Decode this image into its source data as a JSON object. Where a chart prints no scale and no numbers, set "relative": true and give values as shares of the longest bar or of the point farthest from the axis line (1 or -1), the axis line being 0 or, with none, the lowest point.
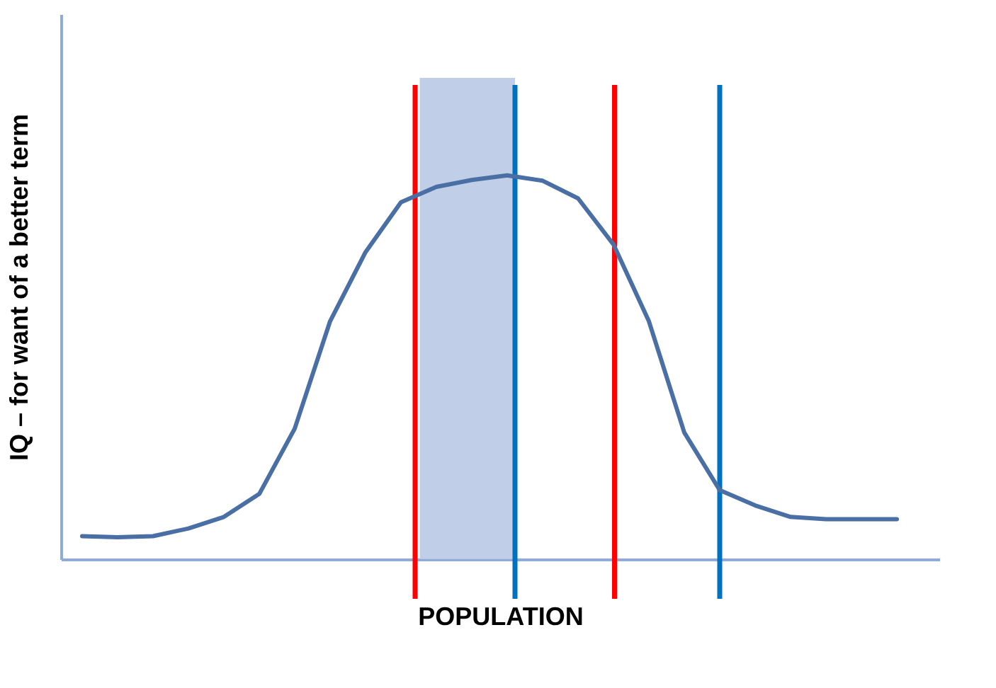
{
  "chart_data": {
    "type": "line",
    "relative": true,
    "xlabel": "POPULATION",
    "ylabel": "IQ – for want of a better term",
    "categories": [
      null,
      null,
      null,
      null,
      null,
      null,
      null,
      null,
      null,
      null,
      null,
      null,
      null,
      null,
      null,
      null,
      null,
      null,
      null,
      null,
      null,
      null,
      null,
      null
    ],
    "grid": false,
    "marker": "none",
    "line_style": "solid",
    "series": [
      {
        "color": "#4a6fa5",
        "values": [
          0.06,
          0.057,
          0.06,
          0.08,
          0.11,
          0.17,
          0.34,
          0.62,
          0.8,
          0.93,
          0.97,
          0.988,
          1,
          0.986,
          0.94,
          0.82,
          0.62,
          0.33,
          0.18,
          0.14,
          0.11,
          0.104,
          0.104,
          0.104
        ]
      }
    ],
    "legend": false
  }
}
